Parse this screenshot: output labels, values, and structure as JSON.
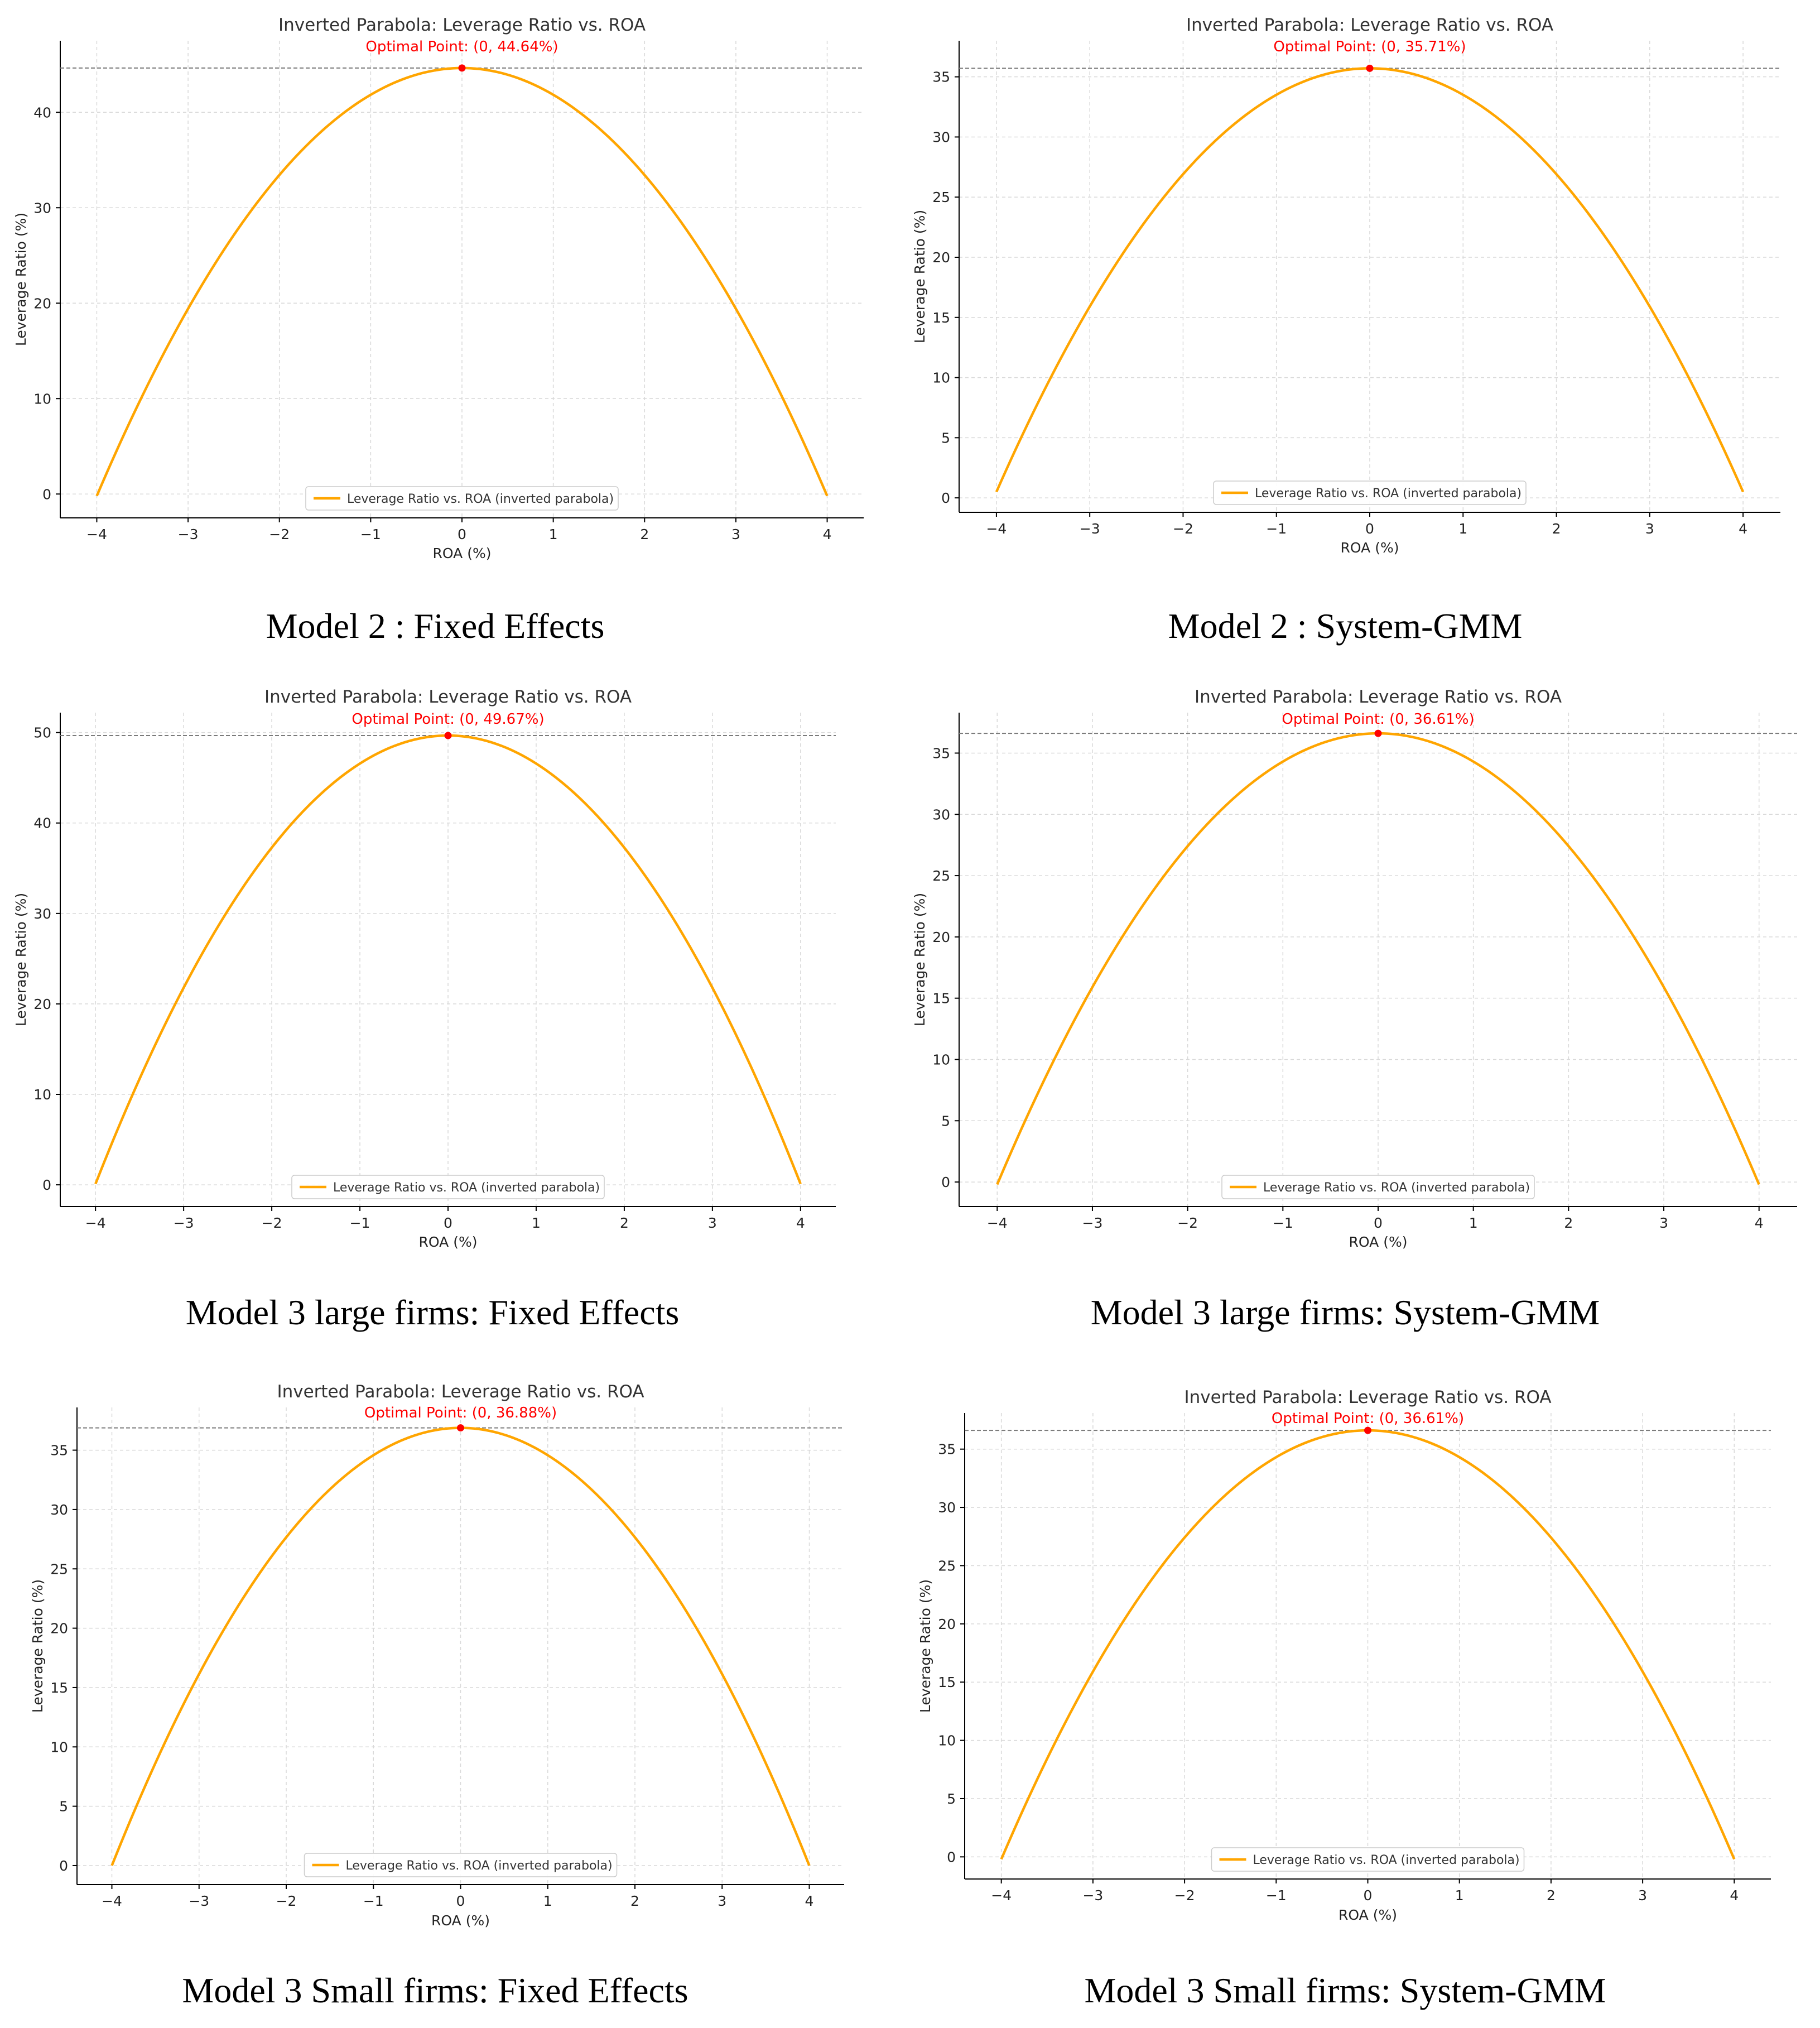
{
  "colors": {
    "curve": "#ffa500",
    "optimum": "#ff0000",
    "title": "#333333",
    "grid": "#d9d9d9",
    "hline": "#7a7a7a"
  },
  "chart_data": [
    {
      "type": "line",
      "title": "Inverted Parabola: Leverage Ratio vs. ROA",
      "optimal_label": "Optimal Point: (0, 44.64%)",
      "xlabel": "ROA (%)",
      "ylabel": "Leverage Ratio (%)",
      "legend": "Leverage Ratio vs. ROA (inverted parabola)",
      "legend_loc": "lower center",
      "caption": "Model 2 : Fixed Effects",
      "x_ticks": [
        "−4",
        "−3",
        "−2",
        "−1",
        "0",
        "1",
        "2",
        "3",
        "4"
      ],
      "y_ticks": [
        "0",
        "10",
        "20",
        "30",
        "40"
      ],
      "xlim": [
        -4.4,
        4.4
      ],
      "ylim": [
        -2.5,
        47.5
      ],
      "curve": {
        "x_range": [
          -4,
          4
        ],
        "vertex_x": 0,
        "vertex_y": 44.64,
        "end_y": -0.2
      },
      "optimal_point": {
        "x": 0,
        "y": 44.64
      },
      "grid": true
    },
    {
      "type": "line",
      "title": "Inverted Parabola: Leverage Ratio vs. ROA",
      "optimal_label": "Optimal Point: (0, 35.71%)",
      "xlabel": "ROA (%)",
      "ylabel": "Leverage Ratio (%)",
      "legend": "Leverage Ratio vs. ROA (inverted parabola)",
      "legend_loc": "lower center",
      "caption": "Model 2 : System-GMM",
      "x_ticks": [
        "−4",
        "−3",
        "−2",
        "−1",
        "0",
        "1",
        "2",
        "3",
        "4"
      ],
      "y_ticks": [
        "0",
        "5",
        "10",
        "15",
        "20",
        "25",
        "30",
        "35"
      ],
      "xlim": [
        -4.4,
        4.4
      ],
      "ylim": [
        -1.2,
        38.0
      ],
      "curve": {
        "x_range": [
          -4,
          4
        ],
        "vertex_x": 0,
        "vertex_y": 35.71,
        "end_y": 0.5
      },
      "optimal_point": {
        "x": 0,
        "y": 35.71
      },
      "grid": true
    },
    {
      "type": "line",
      "title": "Inverted Parabola: Leverage Ratio vs. ROA",
      "optimal_label": "Optimal Point: (0, 49.67%)",
      "xlabel": "ROA (%)",
      "ylabel": "Leverage Ratio (%)",
      "legend": "Leverage Ratio vs. ROA (inverted parabola)",
      "legend_loc": "lower center",
      "caption": "Model 3 large firms: Fixed Effects",
      "x_ticks": [
        "−4",
        "−3",
        "−2",
        "−1",
        "0",
        "1",
        "2",
        "3",
        "4"
      ],
      "y_ticks": [
        "0",
        "10",
        "20",
        "30",
        "40",
        "50"
      ],
      "xlim": [
        -4.4,
        4.4
      ],
      "ylim": [
        -2.4,
        52.2
      ],
      "curve": {
        "x_range": [
          -4,
          4
        ],
        "vertex_x": 0,
        "vertex_y": 49.67,
        "end_y": 0.1
      },
      "optimal_point": {
        "x": 0,
        "y": 49.67
      },
      "grid": true
    },
    {
      "type": "line",
      "title": "Inverted Parabola: Leverage Ratio vs. ROA",
      "optimal_label": "Optimal Point: (0, 36.61%)",
      "xlabel": "ROA (%)",
      "ylabel": "Leverage Ratio (%)",
      "legend": "Leverage Ratio vs. ROA (inverted parabola)",
      "legend_loc": "lower center",
      "caption": "Model 3 large firms: System-GMM",
      "x_ticks": [
        "−4",
        "−3",
        "−2",
        "−1",
        "0",
        "1",
        "2",
        "3",
        "4"
      ],
      "y_ticks": [
        "0",
        "5",
        "10",
        "15",
        "20",
        "25",
        "30",
        "35"
      ],
      "xlim": [
        -4.4,
        4.4
      ],
      "ylim": [
        -2.0,
        38.3
      ],
      "curve": {
        "x_range": [
          -4,
          4
        ],
        "vertex_x": 0,
        "vertex_y": 36.61,
        "end_y": -0.2
      },
      "optimal_point": {
        "x": 0,
        "y": 36.61
      },
      "grid": true
    },
    {
      "type": "line",
      "title": "Inverted Parabola: Leverage Ratio vs. ROA",
      "optimal_label": "Optimal Point: (0, 36.88%)",
      "xlabel": "ROA (%)",
      "ylabel": "Leverage Ratio (%)",
      "legend": "Leverage Ratio vs. ROA (inverted parabola)",
      "legend_loc": "lower center",
      "caption": "Model 3 Small firms: Fixed Effects",
      "x_ticks": [
        "−4",
        "−3",
        "−2",
        "−1",
        "0",
        "1",
        "2",
        "3",
        "4"
      ],
      "y_ticks": [
        "0",
        "5",
        "10",
        "15",
        "20",
        "25",
        "30",
        "35"
      ],
      "xlim": [
        -4.4,
        4.4
      ],
      "ylim": [
        -1.6,
        38.6
      ],
      "curve": {
        "x_range": [
          -4,
          4
        ],
        "vertex_x": 0,
        "vertex_y": 36.88,
        "end_y": 0.0
      },
      "optimal_point": {
        "x": 0,
        "y": 36.88
      },
      "grid": true
    },
    {
      "type": "line",
      "title": "Inverted Parabola: Leverage Ratio vs. ROA",
      "optimal_label": "Optimal Point: (0, 36.61%)",
      "xlabel": "ROA (%)",
      "ylabel": "Leverage Ratio (%)",
      "legend": "Leverage Ratio vs. ROA (inverted parabola)",
      "legend_loc": "lower center",
      "caption": "Model 3 Small firms: System-GMM",
      "x_ticks": [
        "−4",
        "−3",
        "−2",
        "−1",
        "0",
        "1",
        "2",
        "3",
        "4"
      ],
      "y_ticks": [
        "0",
        "5",
        "10",
        "15",
        "20",
        "25",
        "30",
        "35"
      ],
      "xlim": [
        -4.4,
        4.4
      ],
      "ylim": [
        -1.9,
        38.1
      ],
      "curve": {
        "x_range": [
          -4,
          4
        ],
        "vertex_x": 0,
        "vertex_y": 36.61,
        "end_y": -0.2
      },
      "optimal_point": {
        "x": 0,
        "y": 36.61
      },
      "grid": true
    }
  ]
}
